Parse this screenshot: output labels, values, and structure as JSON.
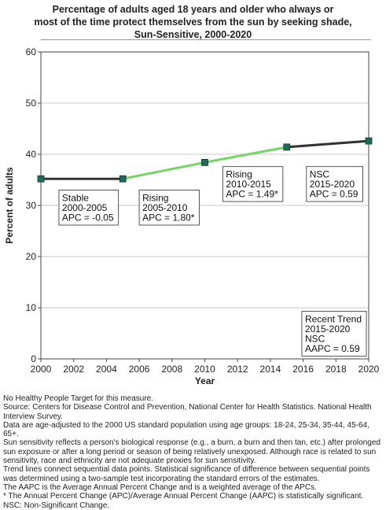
{
  "chart_data": {
    "type": "line",
    "title_lines": [
      "Percentage of adults aged 18 years and older who always or",
      "most of the time protect themselves from the sun by seeking shade,",
      "Sun-Sensitive,  2000-2020"
    ],
    "xlabel": "Year",
    "ylabel": "Percent of adults",
    "xlim": [
      2000,
      2020
    ],
    "ylim": [
      0,
      60
    ],
    "x_ticks": [
      2000,
      2002,
      2004,
      2006,
      2008,
      2010,
      2012,
      2014,
      2016,
      2018,
      2020
    ],
    "y_ticks": [
      0,
      10,
      20,
      30,
      40,
      50,
      60
    ],
    "grid": "horizontal",
    "points": {
      "x": [
        2000,
        2005,
        2010,
        2015,
        2020
      ],
      "y": [
        35.2,
        35.2,
        38.4,
        41.4,
        42.6
      ]
    },
    "segments": [
      {
        "x": [
          2000,
          2005
        ],
        "y": [
          35.2,
          35.2
        ],
        "color": "#333333"
      },
      {
        "x": [
          2005,
          2010,
          2015
        ],
        "y": [
          35.2,
          38.4,
          41.4
        ],
        "color": "#77d466"
      },
      {
        "x": [
          2015,
          2020
        ],
        "y": [
          41.4,
          42.6
        ],
        "color": "#333333"
      }
    ],
    "marker_color": "#1f6b5a",
    "annotations": [
      {
        "id": "stable-2000-2005",
        "lines": [
          "Stable",
          "2000-2005",
          "APC = -0.05"
        ],
        "x_anchor": 2001.1,
        "y_anchor": 33.0
      },
      {
        "id": "rising-2005-2010",
        "lines": [
          "Rising",
          "2005-2010",
          "APC =  1.80*"
        ],
        "x_anchor": 2006.0,
        "y_anchor": 33.0
      },
      {
        "id": "rising-2010-2015",
        "lines": [
          "Rising",
          "2010-2015",
          "APC =  1.49*"
        ],
        "x_anchor": 2011.1,
        "y_anchor": 37.6
      },
      {
        "id": "nsc-2015-2020",
        "lines": [
          "NSC",
          "2015-2020",
          "APC =  0.59"
        ],
        "x_anchor": 2016.2,
        "y_anchor": 37.6
      },
      {
        "id": "recent-trend",
        "lines": [
          "Recent Trend",
          "2015-2020",
          "NSC",
          "AAPC =  0.59"
        ],
        "x_anchor": 2016.3,
        "y_anchor": 9.3
      }
    ]
  },
  "footnotes": [
    "No Healthy People Target for this measure.",
    "Source: Centers for Disease Control and Prevention, National Center for Health Statistics. National Health Interview Survey.",
    "Data are age-adjusted to the 2000 US standard population using age groups: 18-24, 25-34, 35-44, 45-64, 65+.",
    "Sun sensitivity reflects a person's biological response (e.g., a burn, a burn and then tan, etc.) after prolonged sun exposure or after a long period or season of being relatively unexposed. Although race is related to sun sensitivity, race and ethnicity are not adequate proxies for sun sensitivity.",
    "Trend lines connect sequential data points. Statistical significance of difference between sequential points was determined using a two-sample test incorporating the standard errors of the estimates.",
    "The AAPC is the Average Annual Percent Change and is a weighted average of the APCs.",
    "* The Annual Percent Change (APC)/Average Annual Percent Change (AAPC) is statistically significant.",
    "NSC: Non-Significant Change."
  ]
}
